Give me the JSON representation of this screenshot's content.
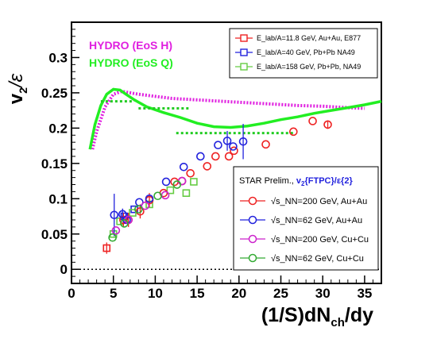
{
  "chart_data": {
    "type": "scatter",
    "xlabel": "(1/S)dN_ch/dy",
    "ylabel": "v_2/ε",
    "xlim": [
      0,
      37
    ],
    "ylim": [
      -0.02,
      0.35
    ],
    "x_ticks": [
      "0",
      "5",
      "10",
      "15",
      "20",
      "25",
      "30",
      "35"
    ],
    "y_ticks": [
      "0",
      "0.05",
      "0.1",
      "0.15",
      "0.2",
      "0.25",
      "0.3"
    ],
    "hydro_labels": [
      {
        "text": "HYDRO (EoS H)",
        "color": "#e020e0"
      },
      {
        "text": "HYDRO (EoS Q)",
        "color": "#22ee22"
      }
    ],
    "hydro_curves": [
      {
        "style": "dotted",
        "color": "#e020e0",
        "x": [
          2.5,
          3,
          4,
          5,
          6,
          7,
          8,
          10,
          12,
          15,
          18,
          21,
          24,
          27,
          30,
          33,
          35
        ],
        "y": [
          0.17,
          0.195,
          0.23,
          0.248,
          0.252,
          0.25,
          0.248,
          0.245,
          0.242,
          0.24,
          0.238,
          0.236,
          0.234,
          0.232,
          0.231,
          0.229,
          0.228
        ]
      },
      {
        "style": "solid",
        "color": "#22ee22",
        "x": [
          2.2,
          2.8,
          3.5,
          4.2,
          5,
          5.8,
          6.5,
          7.5,
          9,
          11,
          13,
          15,
          17,
          19,
          21,
          23,
          25,
          27,
          29,
          31,
          33,
          35,
          37
        ],
        "y": [
          0.17,
          0.205,
          0.232,
          0.248,
          0.255,
          0.254,
          0.248,
          0.24,
          0.23,
          0.222,
          0.215,
          0.207,
          0.202,
          0.201,
          0.203,
          0.207,
          0.212,
          0.216,
          0.221,
          0.225,
          0.229,
          0.233,
          0.238
        ]
      }
    ],
    "lattice_segments": [
      {
        "x1": 3.5,
        "x2": 7.5,
        "y": 0.238
      },
      {
        "x1": 8,
        "x2": 14,
        "y": 0.228
      },
      {
        "x1": 12.5,
        "x2": 26.5,
        "y": 0.193
      }
    ],
    "legend_top": {
      "entries": [
        {
          "label": "E_lab/A=11.8 GeV, Au+Au, E877",
          "color": "#ee2222"
        },
        {
          "label": "E_lab/A=40 GeV, Pb+Pb NA49",
          "color": "#2222dd"
        },
        {
          "label": "E_lab/A=158 GeV, Pb+Pb, NA49",
          "color": "#66cc44"
        }
      ]
    },
    "legend_bottom": {
      "title_prefix": "STAR Prelim.,",
      "title_mark": "v_2{FTPC}/ε{2}",
      "entries": [
        {
          "label": "√s_NN=200 GeV, Au+Au",
          "color": "#ee2222"
        },
        {
          "label": "√s_NN=62 GeV, Au+Au",
          "color": "#2222dd"
        },
        {
          "label": "√s_NN=200 GeV, Cu+Cu",
          "color": "#cc22cc"
        },
        {
          "label": "√s_NN=62 GeV, Cu+Cu",
          "color": "#33aa33"
        }
      ]
    },
    "series": [
      {
        "marker": "square",
        "color": "#ee2222",
        "points": [
          [
            4.2,
            0.03,
            0.008
          ]
        ]
      },
      {
        "marker": "square",
        "color": "#2222dd",
        "points": [
          [
            6.3,
            0.075,
            0
          ],
          [
            7.5,
            0.085,
            0
          ]
        ]
      },
      {
        "marker": "square",
        "color": "#66cc44",
        "points": [
          [
            5.0,
            0.05,
            0
          ],
          [
            5.8,
            0.068,
            0
          ],
          [
            7.3,
            0.08,
            0
          ],
          [
            9.3,
            0.092,
            0
          ],
          [
            11.8,
            0.112,
            0
          ],
          [
            13.7,
            0.108,
            0
          ],
          [
            14.6,
            0.124,
            0
          ]
        ]
      },
      {
        "marker": "circle",
        "color": "#ee2222",
        "points": [
          [
            6.2,
            0.07,
            0.01
          ],
          [
            6.8,
            0.07,
            0.01
          ],
          [
            8.2,
            0.082,
            0.01
          ],
          [
            9.3,
            0.098,
            0.01
          ],
          [
            11.0,
            0.108,
            0
          ],
          [
            12.3,
            0.124,
            0
          ],
          [
            13.2,
            0.125,
            0
          ],
          [
            14.2,
            0.136,
            0
          ],
          [
            16.2,
            0.146,
            0
          ],
          [
            17.2,
            0.16,
            0
          ],
          [
            18.8,
            0.16,
            0
          ],
          [
            19.4,
            0.168,
            0
          ],
          [
            23.2,
            0.177,
            0
          ],
          [
            26.5,
            0.195,
            0
          ],
          [
            28.8,
            0.21,
            0
          ],
          [
            30.6,
            0.205,
            0.006
          ]
        ]
      },
      {
        "marker": "circle",
        "color": "#2222dd",
        "points": [
          [
            5.1,
            0.077,
            0.03
          ],
          [
            6.1,
            0.078,
            0.008
          ],
          [
            6.6,
            0.07,
            0
          ],
          [
            8.1,
            0.095,
            0
          ],
          [
            9.3,
            0.1,
            0
          ],
          [
            11.3,
            0.124,
            0
          ],
          [
            13.4,
            0.145,
            0
          ],
          [
            15.4,
            0.16,
            0
          ],
          [
            17.5,
            0.176,
            0
          ],
          [
            18.6,
            0.182,
            0.014
          ],
          [
            19.3,
            0.174,
            0
          ],
          [
            20.5,
            0.181,
            0.025
          ]
        ]
      },
      {
        "marker": "circle",
        "color": "#cc22cc",
        "points": [
          [
            5.3,
            0.055,
            0
          ],
          [
            6.8,
            0.07,
            0
          ],
          [
            8.8,
            0.09,
            0
          ],
          [
            11.2,
            0.105,
            0
          ],
          [
            13.2,
            0.125,
            0
          ]
        ]
      },
      {
        "marker": "circle",
        "color": "#33aa33",
        "points": [
          [
            4.9,
            0.045,
            0
          ],
          [
            6.3,
            0.065,
            0
          ],
          [
            8.0,
            0.085,
            0
          ],
          [
            10.3,
            0.104,
            0
          ],
          [
            12.6,
            0.12,
            0
          ]
        ]
      }
    ]
  }
}
